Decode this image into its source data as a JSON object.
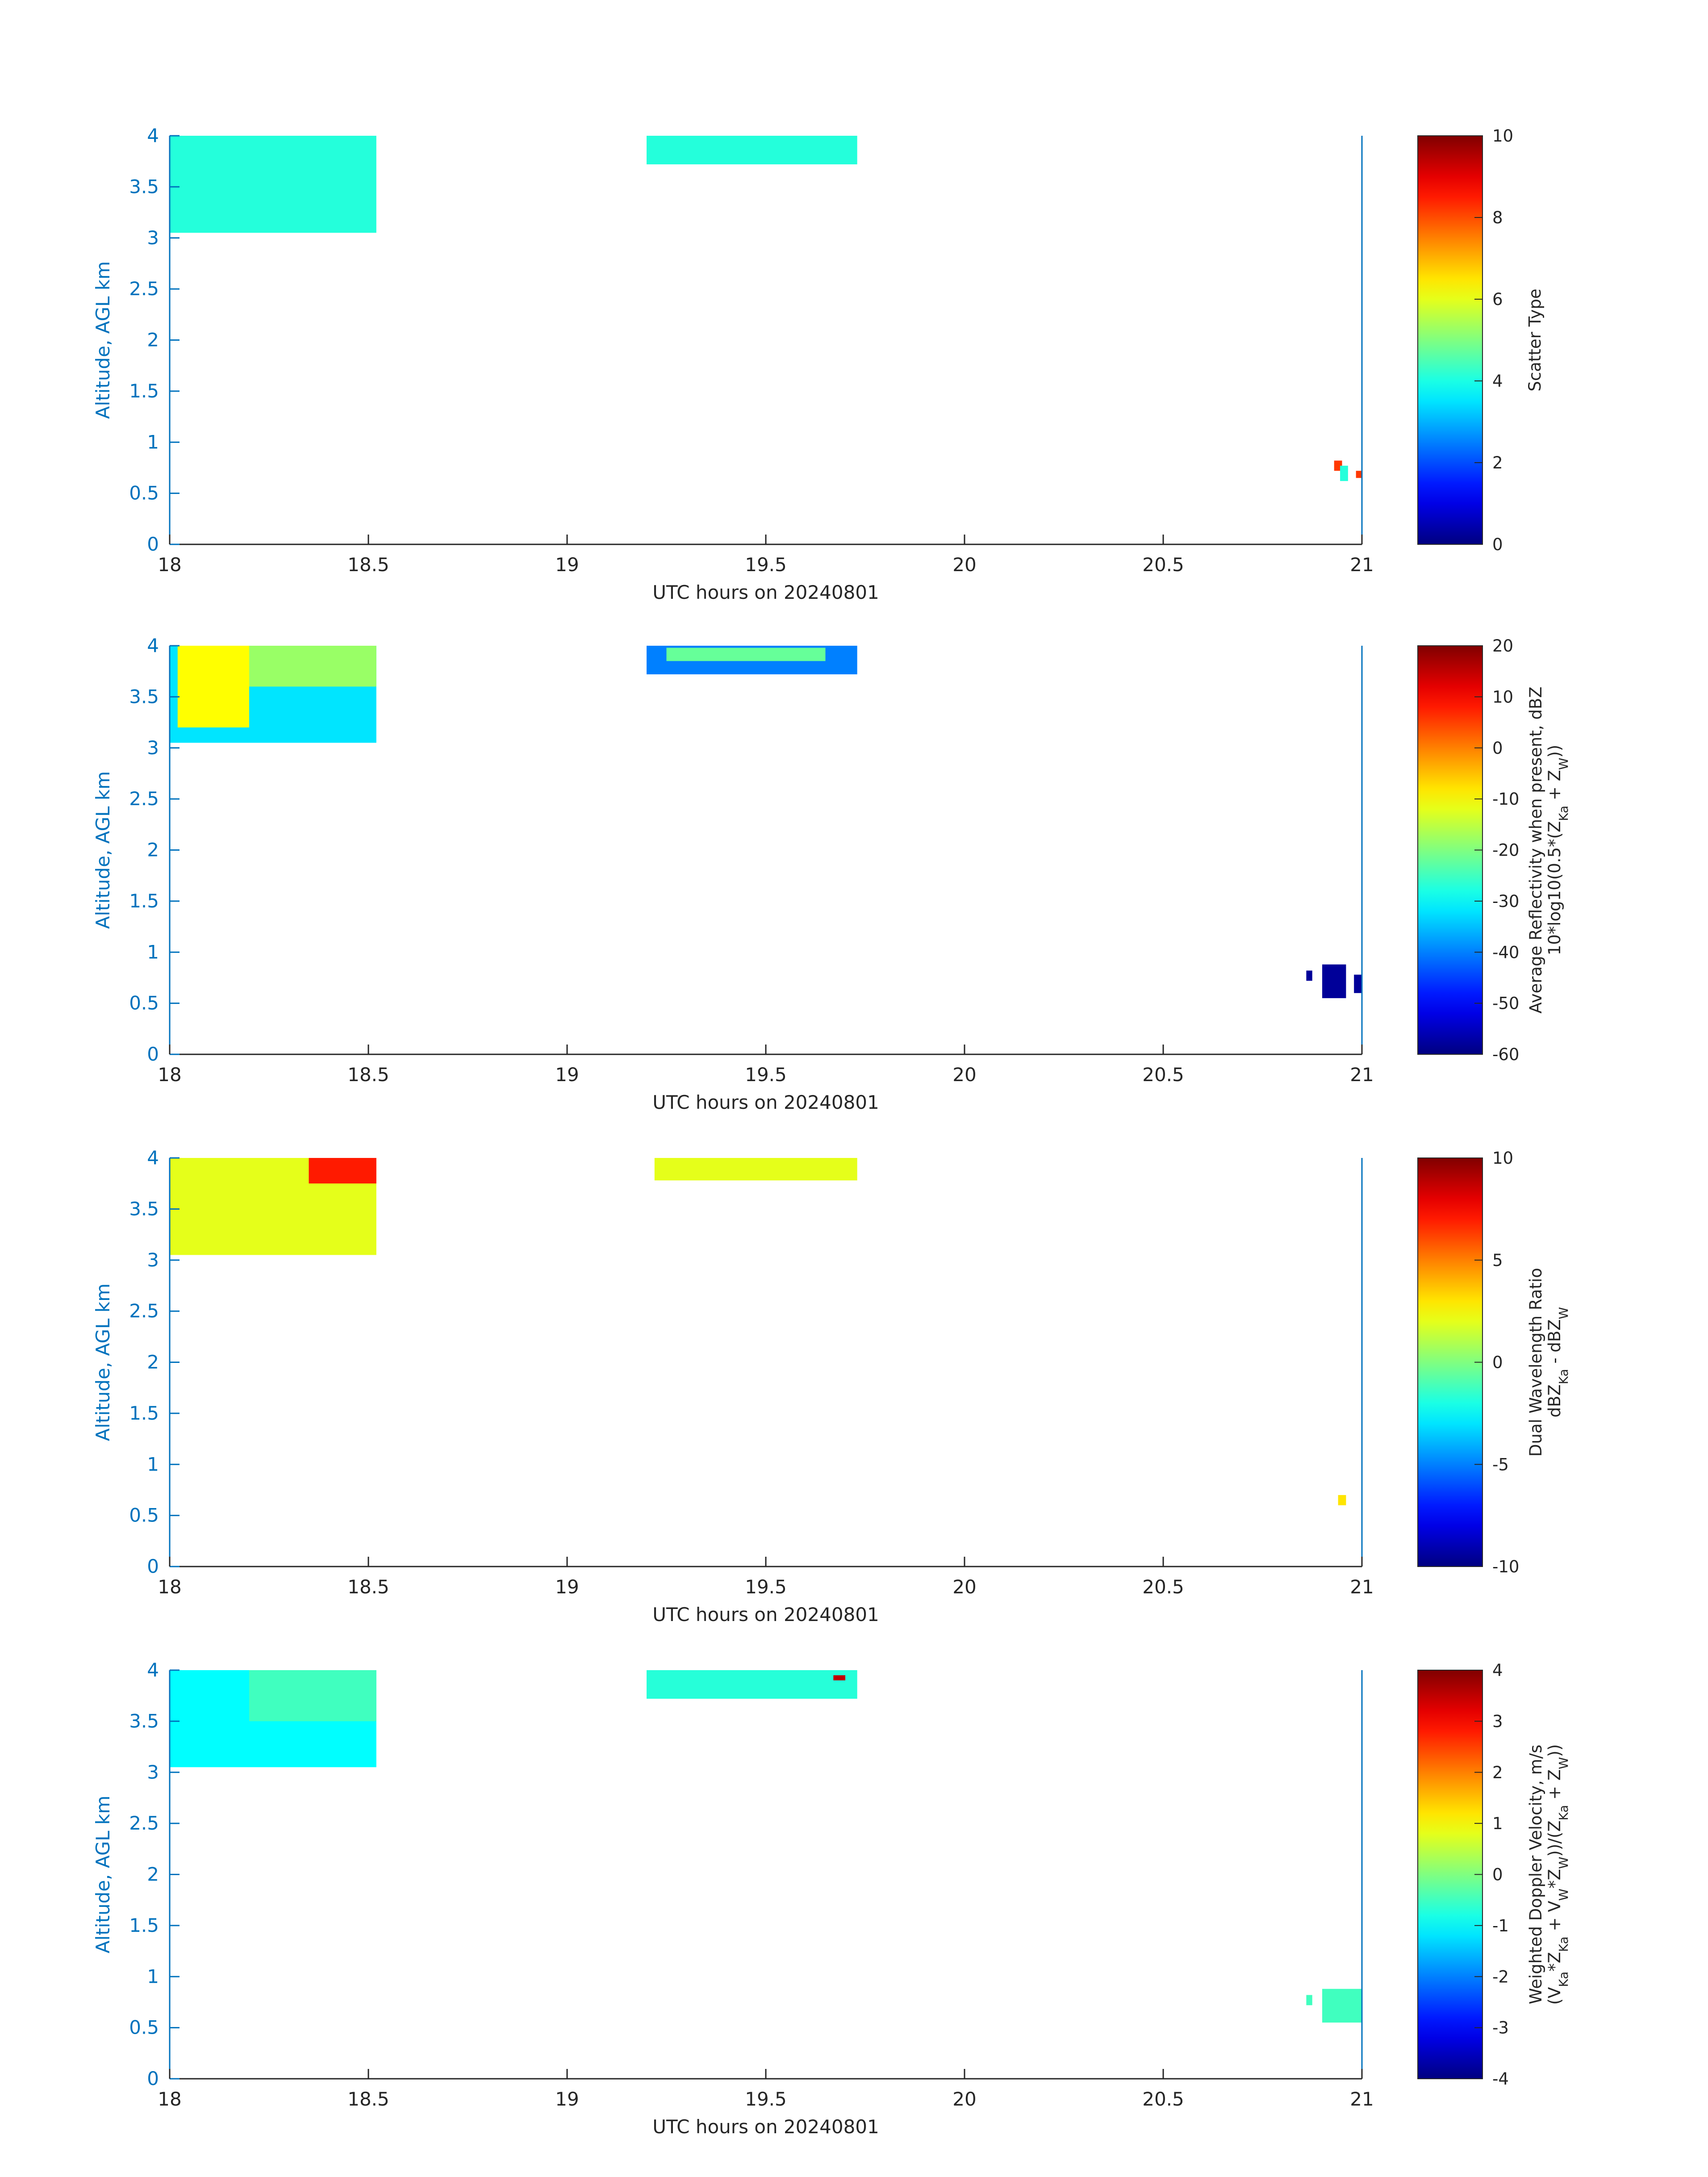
{
  "chart_data": [
    {
      "type": "heatmap",
      "xlabel": "UTC hours on 20240801",
      "ylabel": "Altitude, AGL km",
      "xlim": [
        18,
        21
      ],
      "ylim": [
        0,
        4
      ],
      "x_ticks": [
        "18",
        "18.5",
        "19",
        "19.5",
        "20",
        "20.5",
        "21"
      ],
      "y_ticks": [
        "0",
        "0.5",
        "1",
        "1.5",
        "2",
        "2.5",
        "3",
        "3.5",
        "4"
      ],
      "colorbar": {
        "label_lines": [
          "Scatter Type"
        ],
        "limits": [
          0,
          10
        ],
        "ticks": [
          "0",
          "2",
          "4",
          "6",
          "8",
          "10"
        ],
        "colormap": "jet"
      },
      "grid": false,
      "cells": [
        {
          "x0": 18.0,
          "x1": 18.52,
          "y0": 3.05,
          "y1": 4.0,
          "value": 4.1
        },
        {
          "x0": 19.2,
          "x1": 19.73,
          "y0": 3.72,
          "y1": 4.0,
          "value": 4.1
        },
        {
          "x0": 20.93,
          "x1": 20.95,
          "y0": 0.72,
          "y1": 0.82,
          "value": 8.2
        },
        {
          "x0": 20.945,
          "x1": 20.965,
          "y0": 0.62,
          "y1": 0.77,
          "value": 4.1
        },
        {
          "x0": 20.985,
          "x1": 21.0,
          "y0": 0.65,
          "y1": 0.72,
          "value": 8.2
        }
      ]
    },
    {
      "type": "heatmap",
      "xlabel": "UTC hours on 20240801",
      "ylabel": "Altitude, AGL km",
      "xlim": [
        18,
        21
      ],
      "ylim": [
        0,
        4
      ],
      "x_ticks": [
        "18",
        "18.5",
        "19",
        "19.5",
        "20",
        "20.5",
        "21"
      ],
      "y_ticks": [
        "0",
        "0.5",
        "1",
        "1.5",
        "2",
        "2.5",
        "3",
        "3.5",
        "4"
      ],
      "colorbar": {
        "label_lines": [
          "Average Reflectivity when present, dBZ",
          "10*log10(0.5*(Z_Ka + Z_W))"
        ],
        "limits": [
          -60,
          20
        ],
        "ticks": [
          "-60",
          "-50",
          "-40",
          "-30",
          "-20",
          "-10",
          "0",
          "10",
          "20"
        ],
        "colormap": "jet"
      },
      "grid": false,
      "cells": [
        {
          "x0": 18.0,
          "x1": 18.52,
          "y0": 3.05,
          "y1": 4.0,
          "value": -32
        },
        {
          "x0": 18.02,
          "x1": 18.2,
          "y0": 3.2,
          "y1": 4.0,
          "value": -10
        },
        {
          "x0": 18.2,
          "x1": 18.52,
          "y0": 3.6,
          "y1": 4.0,
          "value": -18
        },
        {
          "x0": 19.2,
          "x1": 19.73,
          "y0": 3.72,
          "y1": 4.0,
          "value": -40
        },
        {
          "x0": 19.25,
          "x1": 19.65,
          "y0": 3.85,
          "y1": 3.98,
          "value": -22
        },
        {
          "x0": 20.86,
          "x1": 20.875,
          "y0": 0.72,
          "y1": 0.82,
          "value": -58
        },
        {
          "x0": 20.9,
          "x1": 20.96,
          "y0": 0.55,
          "y1": 0.88,
          "value": -58
        },
        {
          "x0": 20.98,
          "x1": 21.0,
          "y0": 0.6,
          "y1": 0.78,
          "value": -58
        }
      ]
    },
    {
      "type": "heatmap",
      "xlabel": "UTC hours on 20240801",
      "ylabel": "Altitude, AGL km",
      "xlim": [
        18,
        21
      ],
      "ylim": [
        0,
        4
      ],
      "x_ticks": [
        "18",
        "18.5",
        "19",
        "19.5",
        "20",
        "20.5",
        "21"
      ],
      "y_ticks": [
        "0",
        "0.5",
        "1",
        "1.5",
        "2",
        "2.5",
        "3",
        "3.5",
        "4"
      ],
      "colorbar": {
        "label_lines": [
          "Dual Wavelength Ratio",
          "dBZ_Ka - dBZ_W"
        ],
        "limits": [
          -10,
          10
        ],
        "ticks": [
          "-10",
          "-5",
          "0",
          "5",
          "10"
        ],
        "colormap": "jet"
      },
      "grid": false,
      "cells": [
        {
          "x0": 18.0,
          "x1": 18.52,
          "y0": 3.05,
          "y1": 4.0,
          "value": 2
        },
        {
          "x0": 18.35,
          "x1": 18.52,
          "y0": 3.75,
          "y1": 4.0,
          "value": 7
        },
        {
          "x0": 19.22,
          "x1": 19.73,
          "y0": 3.78,
          "y1": 4.0,
          "value": 2
        },
        {
          "x0": 20.94,
          "x1": 20.96,
          "y0": 0.6,
          "y1": 0.7,
          "value": 3
        }
      ]
    },
    {
      "type": "heatmap",
      "xlabel": "UTC hours on 20240801",
      "ylabel": "Altitude, AGL km",
      "xlim": [
        18,
        21
      ],
      "ylim": [
        0,
        4
      ],
      "x_ticks": [
        "18",
        "18.5",
        "19",
        "19.5",
        "20",
        "20.5",
        "21"
      ],
      "y_ticks": [
        "0",
        "0.5",
        "1",
        "1.5",
        "2",
        "2.5",
        "3",
        "3.5",
        "4"
      ],
      "colorbar": {
        "label_lines": [
          "Weighted Doppler Velocity, m/s",
          "(V_Ka*Z_Ka + V_W*Z_W))/(Z_Ka + Z_W))"
        ],
        "limits": [
          -4,
          4
        ],
        "ticks": [
          "-4",
          "-3",
          "-2",
          "-1",
          "0",
          "1",
          "2",
          "3",
          "4"
        ],
        "colormap": "jet"
      },
      "grid": false,
      "cells": [
        {
          "x0": 18.0,
          "x1": 18.52,
          "y0": 3.05,
          "y1": 4.0,
          "value": -1
        },
        {
          "x0": 18.2,
          "x1": 18.52,
          "y0": 3.5,
          "y1": 4.0,
          "value": -0.5
        },
        {
          "x0": 19.2,
          "x1": 19.73,
          "y0": 3.72,
          "y1": 4.0,
          "value": -0.7
        },
        {
          "x0": 19.67,
          "x1": 19.7,
          "y0": 3.9,
          "y1": 3.95,
          "value": 3.5
        },
        {
          "x0": 20.86,
          "x1": 20.875,
          "y0": 0.72,
          "y1": 0.82,
          "value": -0.5
        },
        {
          "x0": 20.9,
          "x1": 21.0,
          "y0": 0.55,
          "y1": 0.88,
          "value": -0.5
        }
      ]
    }
  ]
}
